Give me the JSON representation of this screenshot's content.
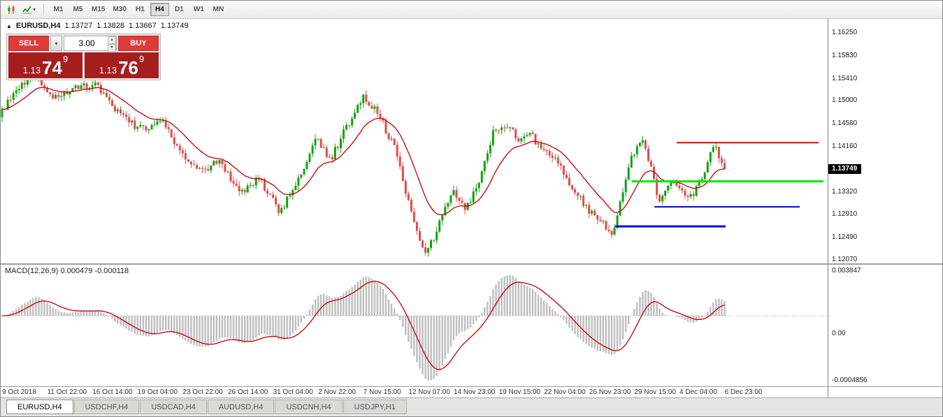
{
  "icons": {
    "caret_down": "▾",
    "caret_up": "▴",
    "expand": "▲"
  },
  "toolbar": {
    "timeframes": [
      "M1",
      "M5",
      "M15",
      "M30",
      "H1",
      "H4",
      "D1",
      "W1",
      "MN"
    ],
    "active_timeframe": "H4"
  },
  "chart_header": {
    "symbol": "EURUSD,H4",
    "open": "1.13727",
    "high": "1.13828",
    "low": "1.13667",
    "close": "1.13749"
  },
  "trade_panel": {
    "sell_label": "SELL",
    "buy_label": "BUY",
    "volume": "3.00",
    "sell_price": {
      "prefix": "1.13",
      "big": "74",
      "sup": "9"
    },
    "buy_price": {
      "prefix": "1.13",
      "big": "76",
      "sup": "9"
    }
  },
  "price_axis": {
    "labels": [
      "1.16250",
      "1.15830",
      "1.15410",
      "1.15000",
      "1.14580",
      "1.14160",
      "1.13320",
      "1.12910",
      "1.12490",
      "1.12070"
    ],
    "current_price": "1.13749"
  },
  "macd_panel": {
    "title": "MACD(12,26,9) 0.000479 -0.000118",
    "axis_top": "0.003847",
    "axis_zero": "0.00",
    "axis_bottom": "-0.0004856"
  },
  "time_axis": {
    "labels": [
      "9 Oct 2018",
      "11 Oct 22:00",
      "16 Oct 14:00",
      "19 Oct 04:00",
      "23 Oct 22:00",
      "26 Oct 14:00",
      "31 Oct 04:00",
      "2 Nov 22:00",
      "7 Nov 15:00",
      "12 Nov 07:00",
      "14 Nov 23:00",
      "19 Nov 15:00",
      "22 Nov 04:00",
      "26 Nov 23:00",
      "29 Nov 15:00",
      "4 Dec 04:00",
      "6 Dec 23:00"
    ]
  },
  "tabs": {
    "items": [
      "EURUSD,H4",
      "USDCHF,H4",
      "USDCAD,H4",
      "AUDUSD,H4",
      "USDCNH,H4",
      "USDJPY,H1"
    ],
    "active": "EURUSD,H4"
  },
  "chart_data": {
    "type": "candlestick",
    "symbol": "EURUSD",
    "timeframe": "H4",
    "bars": 257,
    "plot_right_fraction": 0.877,
    "price_range": {
      "top": 1.1651,
      "bottom": 1.1201
    },
    "last_close": 1.13749,
    "price_path": [
      [
        0.0,
        1.1478
      ],
      [
        0.015,
        1.1512
      ],
      [
        0.045,
        1.155
      ],
      [
        0.07,
        1.1505
      ],
      [
        0.1,
        1.1522
      ],
      [
        0.13,
        1.1532
      ],
      [
        0.16,
        1.148
      ],
      [
        0.19,
        1.1448
      ],
      [
        0.22,
        1.1462
      ],
      [
        0.25,
        1.1402
      ],
      [
        0.28,
        1.1368
      ],
      [
        0.3,
        1.1392
      ],
      [
        0.33,
        1.1332
      ],
      [
        0.355,
        1.1358
      ],
      [
        0.385,
        1.1295
      ],
      [
        0.41,
        1.1358
      ],
      [
        0.435,
        1.1428
      ],
      [
        0.455,
        1.1392
      ],
      [
        0.475,
        1.1448
      ],
      [
        0.5,
        1.1506
      ],
      [
        0.52,
        1.1478
      ],
      [
        0.545,
        1.1408
      ],
      [
        0.565,
        1.1298
      ],
      [
        0.585,
        1.1213
      ],
      [
        0.6,
        1.1256
      ],
      [
        0.625,
        1.1338
      ],
      [
        0.64,
        1.1296
      ],
      [
        0.66,
        1.1352
      ],
      [
        0.68,
        1.1442
      ],
      [
        0.7,
        1.1456
      ],
      [
        0.715,
        1.1424
      ],
      [
        0.73,
        1.144
      ],
      [
        0.75,
        1.1404
      ],
      [
        0.77,
        1.1388
      ],
      [
        0.79,
        1.1338
      ],
      [
        0.81,
        1.1302
      ],
      [
        0.83,
        1.1278
      ],
      [
        0.845,
        1.1253
      ],
      [
        0.858,
        1.1332
      ],
      [
        0.872,
        1.1402
      ],
      [
        0.886,
        1.1424
      ],
      [
        0.9,
        1.1368
      ],
      [
        0.91,
        1.1308
      ],
      [
        0.925,
        1.1356
      ],
      [
        0.94,
        1.1338
      ],
      [
        0.955,
        1.132
      ],
      [
        0.97,
        1.1362
      ],
      [
        0.985,
        1.1424
      ],
      [
        1.0,
        1.13749
      ]
    ],
    "ma": {
      "type": "ema",
      "period": 16,
      "color": "#c40000"
    },
    "hlines": [
      {
        "color": "#e60000",
        "price": 1.1423,
        "x1": 0.817,
        "x2": 0.989,
        "width": 2
      },
      {
        "color": "#00e400",
        "price": 1.1352,
        "x1": 0.763,
        "x2": 0.995,
        "width": 3
      },
      {
        "color": "#0000ee",
        "price": 1.1305,
        "x1": 0.79,
        "x2": 0.966,
        "width": 2
      },
      {
        "color": "#0000ee",
        "price": 1.1269,
        "x1": 0.743,
        "x2": 0.877,
        "width": 3
      }
    ],
    "macd": {
      "fast": 12,
      "slow": 26,
      "signal": 9,
      "histogram_color": "#bdbdbd",
      "signal_color": "#c40000"
    },
    "colors": {
      "up": "#0fa30f",
      "down": "#e34a4a",
      "background": "#ffffff"
    }
  }
}
